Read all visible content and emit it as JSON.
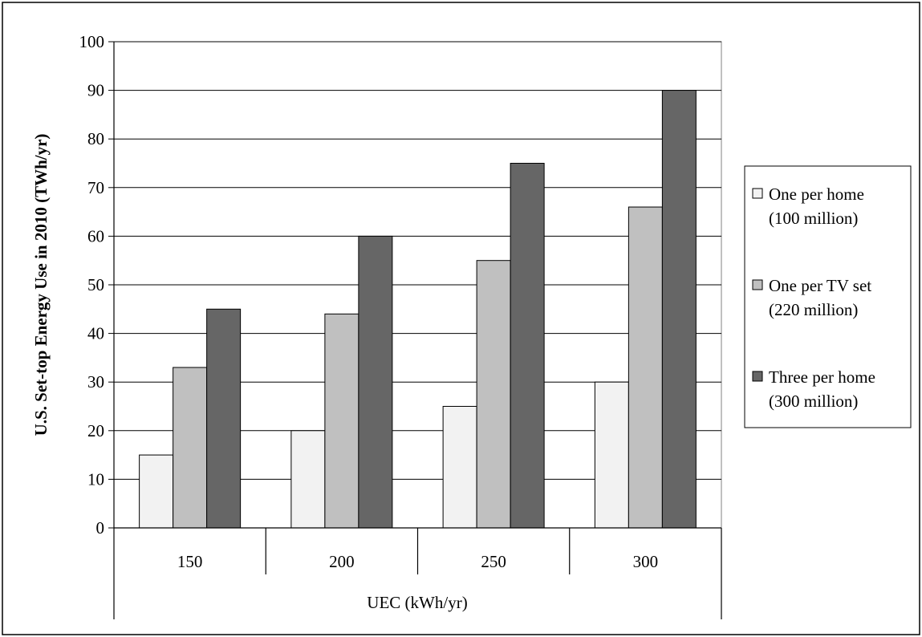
{
  "chart_data": {
    "type": "bar",
    "categories": [
      "150",
      "200",
      "250",
      "300"
    ],
    "series": [
      {
        "name": "One per home (100 million)",
        "label_lines": [
          "One per home",
          "(100 million)"
        ],
        "values": [
          15,
          20,
          25,
          30
        ],
        "color": "#f2f2f2"
      },
      {
        "name": "One per TV set (220 million)",
        "label_lines": [
          "One per TV set",
          "(220 million)"
        ],
        "values": [
          33,
          44,
          55,
          66
        ],
        "color": "#c0c0c0"
      },
      {
        "name": "Three per home (300 million)",
        "label_lines": [
          "Three per home",
          "(300 million)"
        ],
        "values": [
          45,
          60,
          75,
          90
        ],
        "color": "#666666"
      }
    ],
    "title": "",
    "xlabel": "UEC (kWh/yr)",
    "ylabel": "U.S. Set-top Energy Use in 2010 (TWh/yr)",
    "ylim": [
      0,
      100
    ],
    "yticks": [
      0,
      10,
      20,
      30,
      40,
      50,
      60,
      70,
      80,
      90,
      100
    ],
    "grid": true,
    "legend_position": "right"
  }
}
